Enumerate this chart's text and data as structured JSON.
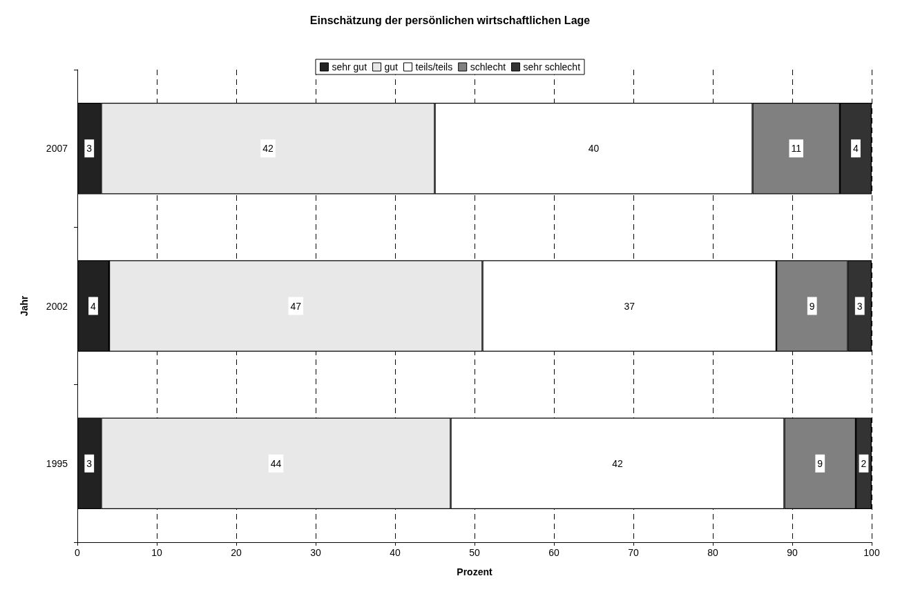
{
  "chart_data": {
    "type": "bar",
    "title": "Einschätzung der persönlichen wirtschaftlichen Lage",
    "xlabel": "Prozent",
    "ylabel": "Jahr",
    "orientation": "horizontal",
    "stacked": true,
    "categories": [
      "2007",
      "2002",
      "1995"
    ],
    "series": [
      {
        "name": "sehr gut",
        "color": "#222222",
        "values": [
          3,
          4,
          3
        ]
      },
      {
        "name": "gut",
        "color": "#e8e8e8",
        "values": [
          42,
          47,
          44
        ]
      },
      {
        "name": "teils/teils",
        "color": "#ffffff",
        "values": [
          40,
          37,
          42
        ]
      },
      {
        "name": "schlecht",
        "color": "#808080",
        "values": [
          11,
          9,
          9
        ]
      },
      {
        "name": "sehr schlecht",
        "color": "#333333",
        "values": [
          4,
          3,
          2
        ]
      }
    ],
    "xlim": [
      0,
      100
    ],
    "xticks": [
      0,
      10,
      20,
      30,
      40,
      50,
      60,
      70,
      80,
      90,
      100
    ],
    "grid": "x",
    "legend": "top",
    "data_labels": true
  }
}
